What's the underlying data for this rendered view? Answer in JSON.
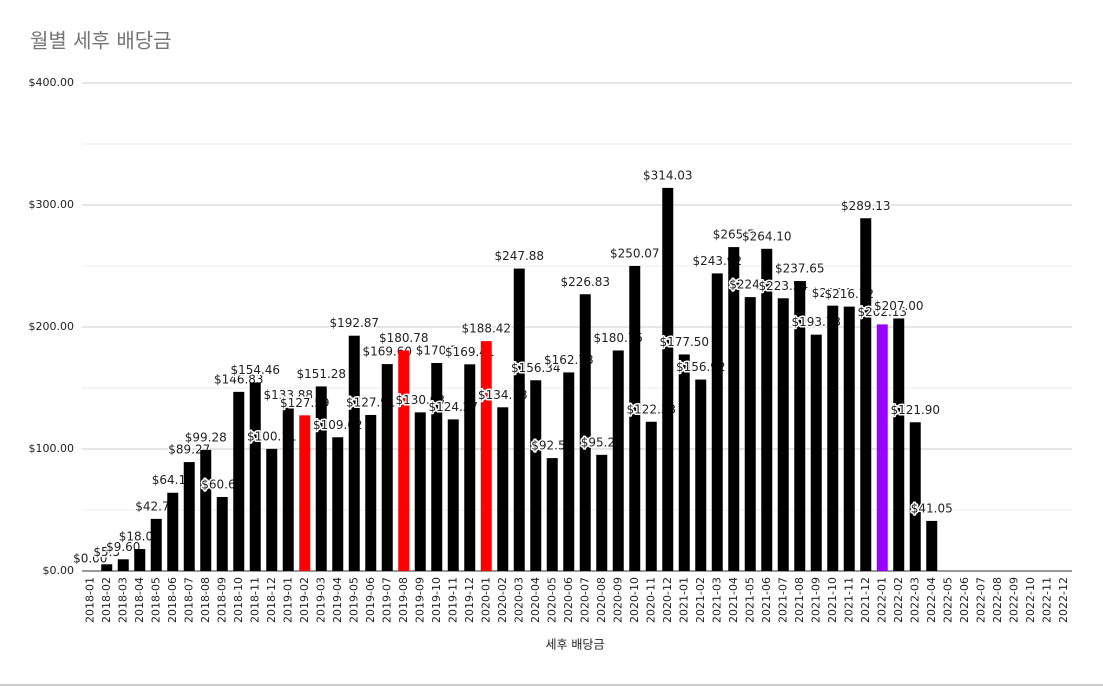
{
  "chart_data": {
    "type": "bar",
    "title": "월별 세후 배당금",
    "x_label": "세후 배당금",
    "categories": [
      "2018-01",
      "2018-02",
      "2018-03",
      "2018-04",
      "2018-05",
      "2018-06",
      "2018-07",
      "2018-08",
      "2018-09",
      "2018-10",
      "2018-11",
      "2018-12",
      "2019-01",
      "2019-02",
      "2019-03",
      "2019-04",
      "2019-05",
      "2019-06",
      "2019-07",
      "2019-08",
      "2019-09",
      "2019-10",
      "2019-11",
      "2019-12",
      "2020-01",
      "2020-02",
      "2020-03",
      "2020-04",
      "2020-05",
      "2020-06",
      "2020-07",
      "2020-08",
      "2020-09",
      "2020-10",
      "2020-11",
      "2020-12",
      "2021-01",
      "2021-02",
      "2021-03",
      "2021-04",
      "2021-05",
      "2021-06",
      "2021-07",
      "2021-08",
      "2021-09",
      "2021-10",
      "2021-11",
      "2021-12",
      "2022-01",
      "2022-02",
      "2022-03",
      "2022-04",
      "2022-05",
      "2022-06",
      "2022-07",
      "2022-08",
      "2022-09",
      "2022-10",
      "2022-11",
      "2022-12"
    ],
    "values": [
      0,
      5.5,
      9.6,
      18,
      42.73,
      64.14,
      89.27,
      99.28,
      60.69,
      146.83,
      154.46,
      100.11,
      133.88,
      127.59,
      151.28,
      109.62,
      192.87,
      127.91,
      169.6,
      180.78,
      130.03,
      170.5,
      124.27,
      169.41,
      188.42,
      134.18,
      247.88,
      156.34,
      92.54,
      162.78,
      226.83,
      95.22,
      180.75,
      250.07,
      122.33,
      314.03,
      177.5,
      156.92,
      243.92,
      265.5,
      224.5,
      264.1,
      223.54,
      237.65,
      193.73,
      217.5,
      216.72,
      289.13,
      202.13,
      207,
      121.9,
      41.05,
      null,
      null,
      null,
      null,
      null,
      null,
      null,
      null
    ],
    "value_labels": [
      "$0.00",
      "$5.5",
      "$9.60",
      "$18.00",
      "$42.73",
      "$64.14",
      "$89.27",
      "$99.28",
      "$60.69",
      "$146.83",
      "$154.46",
      "$100.11",
      "$133.88",
      "$127.59",
      "$151.28",
      "$109.62",
      "$192.87",
      "$127.91",
      "$169.60",
      "$180.78",
      "$130.03",
      "$170.5",
      "$124.27",
      "$169.41",
      "$188.42",
      "$134.18",
      "$247.88",
      "$156.34",
      "$92.54",
      "$162.78",
      "$226.83",
      "$95.22",
      "$180.75",
      "$250.07",
      "$122.33",
      "$314.03",
      "$177.50",
      "$156.92",
      "$243.92",
      "$265.5",
      "$224.5",
      "$264.10",
      "$223.54",
      "$237.65",
      "$193.73",
      "$217.5",
      "$216.72",
      "$289.13",
      "$202.13",
      "$207.00",
      "$121.90",
      "$41.05",
      null,
      null,
      null,
      null,
      null,
      null,
      null,
      null
    ],
    "color": "#000000",
    "colors": [
      "#ff0000",
      "#000000",
      "#000000",
      "#000000",
      "#000000",
      "#000000",
      "#000000",
      "#000000",
      "#000000",
      "#000000",
      "#000000",
      "#000000",
      "#000000",
      "#ff0000",
      "#000000",
      "#000000",
      "#000000",
      "#000000",
      "#000000",
      "#ff0000",
      "#000000",
      "#000000",
      "#000000",
      "#000000",
      "#ff0000",
      "#000000",
      "#000000",
      "#000000",
      "#000000",
      "#000000",
      "#000000",
      "#000000",
      "#000000",
      "#000000",
      "#000000",
      "#000000",
      "#000000",
      "#000000",
      "#000000",
      "#000000",
      "#000000",
      "#000000",
      "#000000",
      "#000000",
      "#000000",
      "#000000",
      "#000000",
      "#000000",
      "#9900ff",
      "#000000",
      "#000000",
      "#000000",
      "#000000",
      "#000000",
      "#000000",
      "#000000",
      "#000000",
      "#000000",
      "#000000",
      "#000000"
    ],
    "ylim": [
      0,
      400
    ],
    "yticks": [
      {
        "value": 0,
        "label": "$0.00"
      },
      {
        "value": 100,
        "label": "$100.00"
      },
      {
        "value": 200,
        "label": "$200.00"
      },
      {
        "value": 300,
        "label": "$300.00"
      },
      {
        "value": 400,
        "label": "$400.00"
      }
    ],
    "grid": true
  }
}
